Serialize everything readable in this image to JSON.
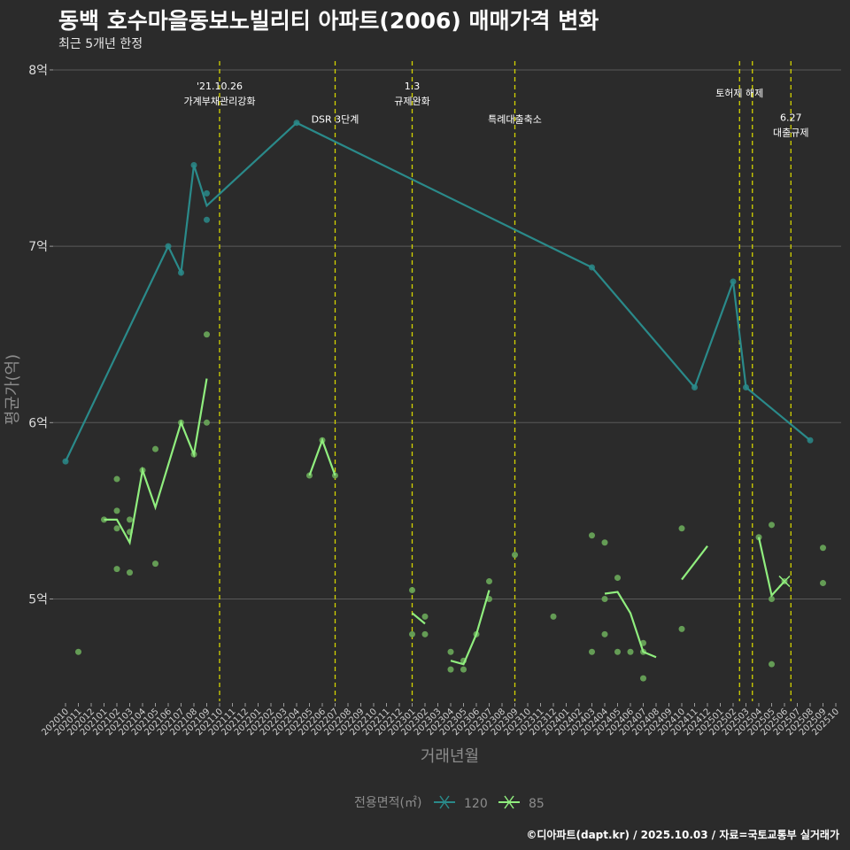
{
  "header": {
    "title": "동백 호수마을동보노빌리티 아파트(2006) 매매가격 변화",
    "subtitle": "최근 5개년 한정"
  },
  "caption": "©디아파트(dapt.kr) / 2025.10.03 / 자료=국토교통부 실거래가",
  "colors": {
    "background": "#2b2b2b",
    "grid": "#595959",
    "series_120": "#2a8a8a",
    "series_85": "#90ee7e",
    "points_85": "#6aa85a",
    "event_line": "#d4d400"
  },
  "chart_data": {
    "type": "line",
    "title": "동백 호수마을동보노빌리티 아파트(2006) 매매가격 변화",
    "subtitle": "최근 5개년 한정",
    "xlabel": "거래년월",
    "ylabel": "평균가(억)",
    "ylim": [
      4.42,
      8.05
    ],
    "y_ticks": [
      5,
      6,
      7,
      8
    ],
    "y_tick_labels": [
      "5억",
      "6억",
      "7억",
      "8억"
    ],
    "x_ticks": [
      "202010",
      "202011",
      "202012",
      "202101",
      "202102",
      "202103",
      "202104",
      "202105",
      "202106",
      "202107",
      "202108",
      "202109",
      "202110",
      "202111",
      "202112",
      "202201",
      "202202",
      "202203",
      "202204",
      "202205",
      "202206",
      "202207",
      "202208",
      "202209",
      "202210",
      "202211",
      "202212",
      "202301",
      "202302",
      "202303",
      "202304",
      "202305",
      "202306",
      "202307",
      "202308",
      "202309",
      "202310",
      "202311",
      "202312",
      "202401",
      "202402",
      "202403",
      "202404",
      "202405",
      "202406",
      "202407",
      "202408",
      "202409",
      "202410",
      "202411",
      "202412",
      "202501",
      "202502",
      "202503",
      "202504",
      "202505",
      "202506",
      "202507",
      "202508",
      "202509",
      "202510"
    ],
    "legend": {
      "title": "전용면적(㎡)",
      "items": [
        "120",
        "85"
      ],
      "position": "bottom"
    },
    "events": [
      {
        "x": 12,
        "label": "'21.10.26\n가계부채관리강화",
        "label_y": 7.85
      },
      {
        "x": 21,
        "label": "DSR 3단계",
        "label_y": 7.7
      },
      {
        "x": 27,
        "label": "1.3\n규제완화",
        "label_y": 7.85
      },
      {
        "x": 35,
        "label": "특례대출축소",
        "label_y": 7.7
      },
      {
        "x": 52.5,
        "label": "토허제 해제",
        "label_y": 7.85
      },
      {
        "x": 53.5,
        "label": "",
        "label_y": 7.85
      },
      {
        "x": 56.5,
        "label": "6.27\n대출규제",
        "label_y": 7.67
      }
    ],
    "series": [
      {
        "name": "120",
        "line": [
          [
            0,
            5.78
          ],
          [
            8,
            7.0
          ],
          [
            9,
            6.85
          ],
          [
            10,
            7.46
          ],
          [
            11,
            7.23
          ],
          [
            18,
            7.7
          ],
          [
            41,
            6.88
          ],
          [
            49,
            6.2
          ],
          [
            52,
            6.8
          ],
          [
            53,
            6.2
          ],
          [
            58,
            5.9
          ]
        ],
        "points": [
          [
            0,
            5.78
          ],
          [
            8,
            7.0
          ],
          [
            9,
            6.85
          ],
          [
            10,
            7.46
          ],
          [
            11,
            7.3
          ],
          [
            11,
            7.15
          ],
          [
            18,
            7.7
          ],
          [
            41,
            6.88
          ],
          [
            49,
            6.2
          ],
          [
            52,
            6.8
          ],
          [
            53,
            6.2
          ],
          [
            58,
            5.9
          ]
        ]
      },
      {
        "name": "85",
        "line_segments": [
          [
            [
              3,
              5.45
            ],
            [
              4,
              5.45
            ],
            [
              5,
              5.32
            ],
            [
              6,
              5.73
            ],
            [
              7,
              5.52
            ],
            [
              9,
              6.0
            ],
            [
              10,
              5.82
            ],
            [
              11,
              6.25
            ]
          ],
          [
            [
              19,
              5.7
            ],
            [
              20,
              5.9
            ],
            [
              21,
              5.7
            ]
          ],
          [
            [
              27,
              4.92
            ],
            [
              28,
              4.86
            ]
          ],
          [
            [
              30,
              4.65
            ],
            [
              31,
              4.63
            ],
            [
              32,
              4.8
            ],
            [
              33,
              5.05
            ]
          ],
          [
            [
              42,
              5.03
            ],
            [
              43,
              5.04
            ],
            [
              44,
              4.92
            ],
            [
              45,
              4.7
            ],
            [
              46,
              4.67
            ]
          ],
          [
            [
              48,
              5.11
            ],
            [
              50,
              5.3
            ]
          ],
          [
            [
              54,
              5.35
            ],
            [
              55,
              5.02
            ],
            [
              56,
              5.1
            ]
          ]
        ],
        "points": [
          [
            1,
            4.7
          ],
          [
            3,
            5.45
          ],
          [
            4,
            5.4
          ],
          [
            4,
            5.5
          ],
          [
            4,
            5.68
          ],
          [
            4,
            5.17
          ],
          [
            5,
            5.45
          ],
          [
            5,
            5.38
          ],
          [
            5,
            5.15
          ],
          [
            6,
            5.73
          ],
          [
            7,
            5.85
          ],
          [
            7,
            5.2
          ],
          [
            9,
            6.0
          ],
          [
            10,
            5.82
          ],
          [
            11,
            6.5
          ],
          [
            11,
            6.0
          ],
          [
            19,
            5.7
          ],
          [
            20,
            5.9
          ],
          [
            21,
            5.7
          ],
          [
            27,
            5.05
          ],
          [
            27,
            4.8
          ],
          [
            28,
            4.9
          ],
          [
            28,
            4.8
          ],
          [
            30,
            4.6
          ],
          [
            30,
            4.7
          ],
          [
            31,
            4.6
          ],
          [
            31,
            4.65
          ],
          [
            32,
            4.8
          ],
          [
            33,
            5.1
          ],
          [
            33,
            5.0
          ],
          [
            35,
            5.25
          ],
          [
            38,
            4.9
          ],
          [
            41,
            5.36
          ],
          [
            41,
            4.7
          ],
          [
            42,
            5.32
          ],
          [
            42,
            5.0
          ],
          [
            42,
            4.8
          ],
          [
            43,
            5.12
          ],
          [
            43,
            4.7
          ],
          [
            44,
            4.7
          ],
          [
            45,
            4.75
          ],
          [
            45,
            4.7
          ],
          [
            45,
            4.55
          ],
          [
            48,
            5.4
          ],
          [
            48,
            4.83
          ],
          [
            54,
            5.35
          ],
          [
            55,
            5.42
          ],
          [
            55,
            5.0
          ],
          [
            55,
            4.63
          ],
          [
            56,
            5.1
          ],
          [
            59,
            5.29
          ],
          [
            59,
            5.09
          ]
        ]
      }
    ]
  }
}
